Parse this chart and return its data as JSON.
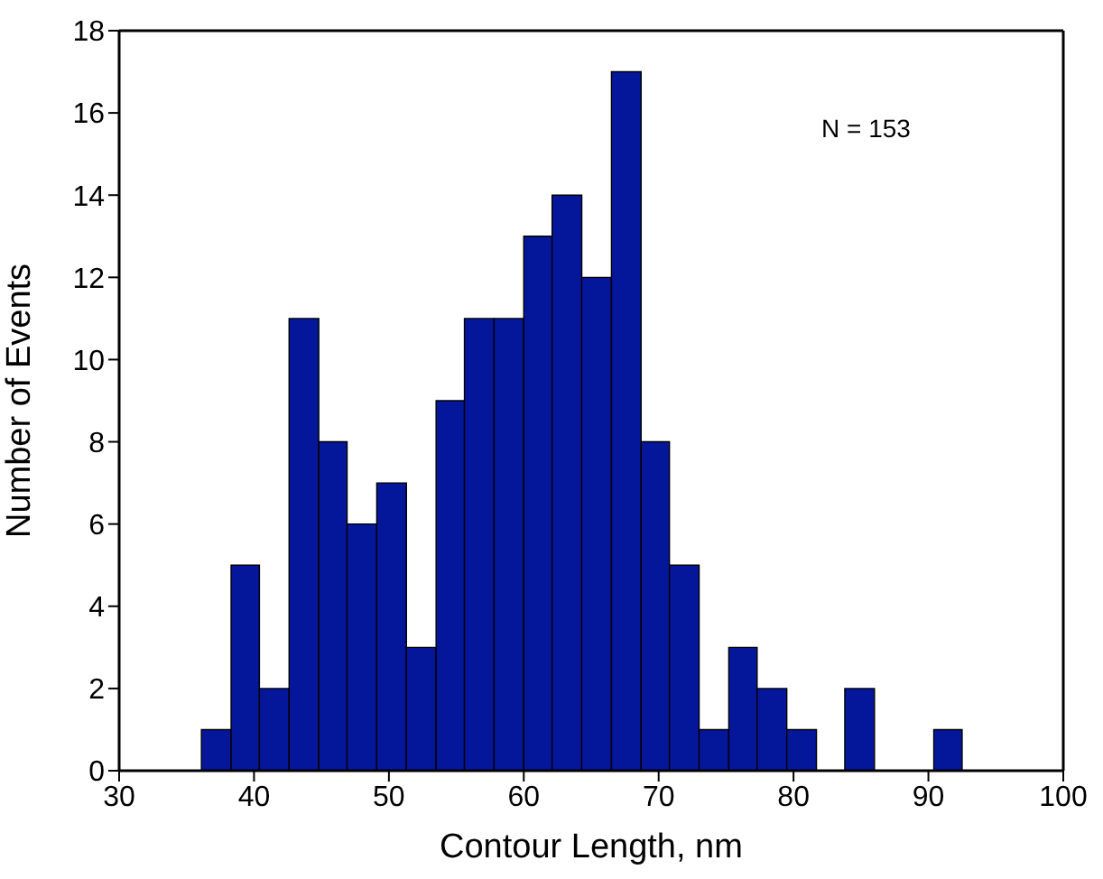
{
  "chart_data": {
    "type": "histogram",
    "xlabel": "Contour Length, nm",
    "ylabel": "Number of Events",
    "annotations": [
      "N = 153"
    ],
    "bins": [
      36.1,
      38.3,
      40.4,
      42.6,
      44.8,
      46.9,
      49.1,
      51.3,
      53.5,
      55.6,
      57.8,
      60.0,
      62.1,
      64.3,
      66.5,
      68.7,
      70.8,
      73.0,
      75.2,
      77.3,
      79.5,
      81.7,
      83.8,
      86.0,
      90.4,
      92.5
    ],
    "values": [
      1,
      5,
      2,
      11,
      8,
      6,
      7,
      3,
      9,
      11,
      11,
      13,
      14,
      12,
      17,
      8,
      5,
      1,
      3,
      2,
      1,
      0,
      2,
      0,
      1
    ],
    "color": "#04179b",
    "xlim": [
      30,
      100
    ],
    "xticks": [
      30,
      40,
      50,
      60,
      70,
      80,
      90,
      100
    ],
    "ylim": [
      0,
      18
    ],
    "yticks": [
      0,
      2,
      4,
      6,
      8,
      10,
      12,
      14,
      16,
      18
    ],
    "grid": false
  }
}
